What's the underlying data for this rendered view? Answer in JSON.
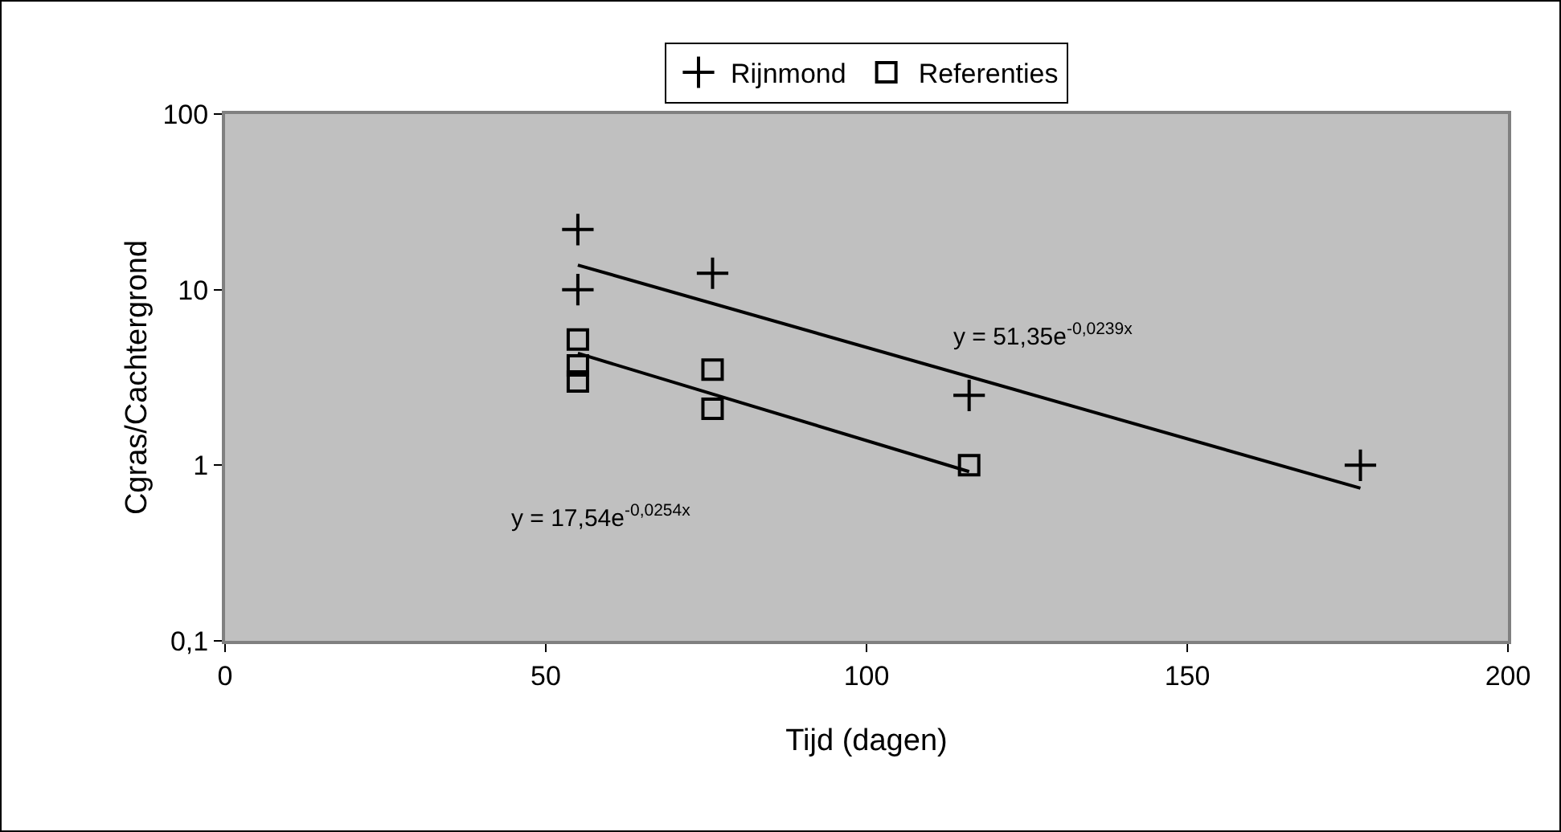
{
  "chart_data": {
    "type": "scatter",
    "xlabel": "Tijd (dagen)",
    "ylabel": "Cgras/Cachtergrond",
    "log": "y",
    "grid": false,
    "legend": "top",
    "xlim": [
      0,
      200
    ],
    "xticks": [
      0,
      50,
      100,
      150,
      200
    ],
    "ylim": [
      0.1,
      100
    ],
    "yticks": [
      {
        "value": 0.1,
        "label": "0,1"
      },
      1,
      10,
      100
    ],
    "series": [
      {
        "name": "Rijnmond",
        "type": "scatter",
        "marker": "cross",
        "color": "#000000",
        "x": [
          55,
          55,
          76,
          116,
          177
        ],
        "values": [
          22,
          10,
          12.4,
          2.5,
          1
        ]
      },
      {
        "name": "Referenties",
        "type": "scatter",
        "marker": "square",
        "color": "#000000",
        "x": [
          55,
          55,
          55,
          76,
          76,
          116
        ],
        "values": [
          5.2,
          3.7,
          3,
          3.5,
          2.1,
          1
        ]
      },
      {
        "type": "line",
        "marker": "none",
        "color": "#000000",
        "x": [
          55,
          177
        ],
        "values": [
          13.8,
          0.74
        ]
      },
      {
        "type": "line",
        "marker": "none",
        "color": "#000000",
        "x": [
          55,
          116
        ],
        "values": [
          4.34,
          0.92
        ]
      }
    ],
    "annotations": [
      "y = 51,35e$^{-0,0239x}$",
      "y = 17,54e$^{-0,0254x}$"
    ]
  }
}
